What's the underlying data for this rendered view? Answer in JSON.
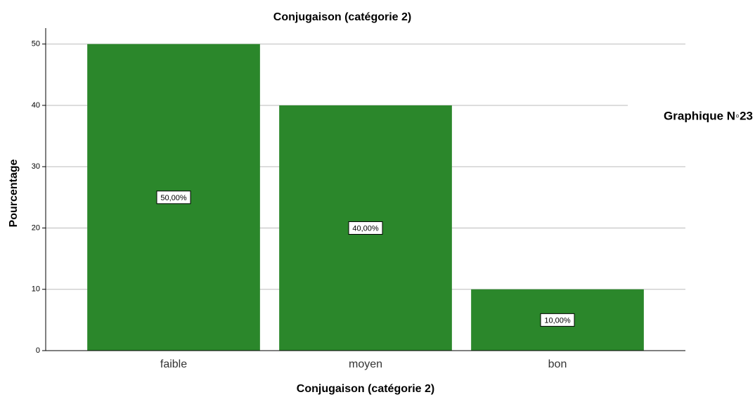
{
  "chart_data": {
    "type": "bar",
    "title": "Conjugaison (catégorie 2)",
    "x_label": "Conjugaison (catégorie 2)",
    "y_label": "Pourcentage",
    "annotation": "Graphique N◦23",
    "categories": [
      "faible",
      "moyen",
      "bon"
    ],
    "values": [
      50,
      40,
      10
    ],
    "value_labels": [
      "50,00%",
      "40,00%",
      "10,00%"
    ],
    "color": "#2b872b",
    "ylim": [
      0,
      52.6
    ],
    "yticks": [
      0,
      10,
      20,
      30,
      40,
      50
    ],
    "grid": true
  }
}
